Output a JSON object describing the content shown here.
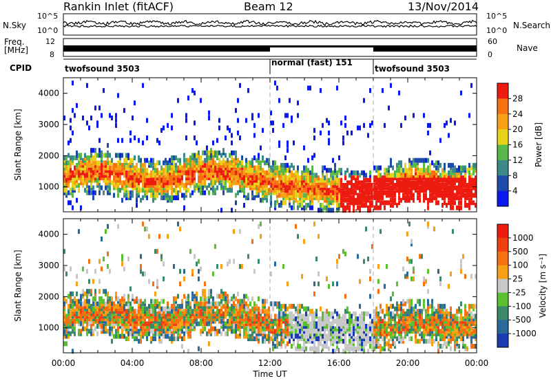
{
  "header": {
    "radar": "Rankin Inlet (fitACF)",
    "beam": "Beam 12",
    "date": "13/Nov/2014"
  },
  "status_panel": {
    "nsky_label": "N.Sky",
    "nsky_ticks": [
      "10^5",
      "10^0"
    ],
    "nsearch_label": "N.Search",
    "nsearch_ticks": [
      "10^5",
      "10^0"
    ],
    "freq_label_line1": "Freq.",
    "freq_label_line2": "[MHz]",
    "freq_ticks": [
      "12",
      "8"
    ],
    "nave_label": "Nave",
    "nave_ticks": [
      "60",
      "0"
    ],
    "cpid_label": "CPID"
  },
  "cpid_segments": [
    {
      "label": "twofsound 3503",
      "start_hour": 0,
      "end_hour": 12
    },
    {
      "label": "normal (fast) 151",
      "start_hour": 12,
      "end_hour": 18
    },
    {
      "label": "twofsound 3503",
      "start_hour": 18,
      "end_hour": 24
    }
  ],
  "chart_data": [
    {
      "type": "heatmap",
      "name": "power",
      "ylabel": "Slant Range [km]",
      "yticks": [
        1000,
        2000,
        3000,
        4000
      ],
      "ylim": [
        200,
        4500
      ],
      "xlim_hours": [
        0,
        24
      ],
      "colorbar": {
        "label": "Power [dB]",
        "ticks": [
          "4",
          "8",
          "12",
          "16",
          "20",
          "24",
          "28"
        ],
        "colors": [
          "#0a1aee",
          "#1e4aaa",
          "#3a8a8a",
          "#5ab848",
          "#e8d21a",
          "#f7a214",
          "#f77012",
          "#ee1c10"
        ]
      }
    },
    {
      "type": "heatmap",
      "name": "velocity",
      "ylabel": "Slant Range [km]",
      "yticks": [
        1000,
        2000,
        3000,
        4000
      ],
      "ylim": [
        200,
        4500
      ],
      "xlim_hours": [
        0,
        24
      ],
      "xticks": [
        "00:00",
        "04:00",
        "08:00",
        "12:00",
        "16:00",
        "20:00",
        "00:00"
      ],
      "xlabel": "Time UT",
      "colorbar": {
        "label": "Velocity [m s⁻¹]",
        "ticks": [
          "1000",
          "500",
          "100",
          "25",
          "-25",
          "-100",
          "-500",
          "-1000"
        ],
        "colors": [
          "#1a3ab4",
          "#2a6a9a",
          "#3a8a6a",
          "#5ac030",
          "#c8c8c8",
          "#f7a014",
          "#f77012",
          "#f04010",
          "#ee1c10"
        ]
      }
    }
  ]
}
